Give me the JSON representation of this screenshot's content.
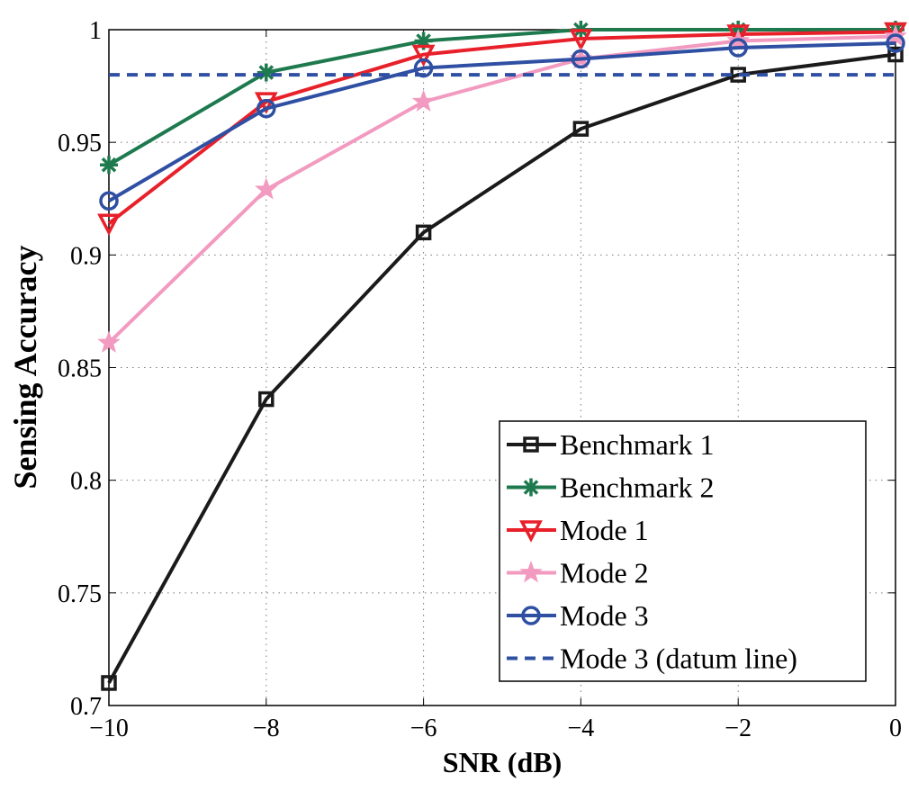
{
  "chart_data": {
    "type": "line",
    "xlabel": "SNR (dB)",
    "ylabel": "Sensing Accuracy",
    "xlim": [
      -10,
      0
    ],
    "ylim": [
      0.7,
      1
    ],
    "x": [
      -10,
      -8,
      -6,
      -4,
      -2,
      0
    ],
    "xticks": [
      -10,
      -8,
      -6,
      -4,
      -2,
      0
    ],
    "xtick_labels": [
      "−10",
      "−8",
      "−6",
      "−4",
      "−2",
      "0"
    ],
    "yticks": [
      0.7,
      0.75,
      0.8,
      0.85,
      0.9,
      0.95,
      1
    ],
    "ytick_labels": [
      "0.7",
      "0.75",
      "0.8",
      "0.85",
      "0.9",
      "0.95",
      "1"
    ],
    "grid": true,
    "legend_position": "bottom-right",
    "series": [
      {
        "name": "Benchmark 1",
        "color": "#1a1a1a",
        "marker": "square",
        "values": [
          0.71,
          0.836,
          0.91,
          0.956,
          0.98,
          0.989
        ]
      },
      {
        "name": "Benchmark 2",
        "color": "#1e7a4e",
        "marker": "asterisk",
        "values": [
          0.94,
          0.981,
          0.995,
          1.0,
          1.0,
          1.0
        ]
      },
      {
        "name": "Mode 1",
        "color": "#e8202a",
        "marker": "triangle-down",
        "values": [
          0.914,
          0.968,
          0.989,
          0.996,
          0.998,
          0.999
        ]
      },
      {
        "name": "Mode 2",
        "color": "#f29ac0",
        "marker": "star",
        "values": [
          0.861,
          0.929,
          0.968,
          0.987,
          0.995,
          0.997
        ]
      },
      {
        "name": "Mode 3",
        "color": "#2f4fa3",
        "marker": "circle",
        "values": [
          0.924,
          0.965,
          0.983,
          0.987,
          0.992,
          0.994
        ]
      },
      {
        "name": "Mode 3 (datum line)",
        "color": "#2f4fa3",
        "marker": "none",
        "dashed": true,
        "values": [
          0.98,
          0.98,
          0.98,
          0.98,
          0.98,
          0.98
        ]
      }
    ]
  }
}
